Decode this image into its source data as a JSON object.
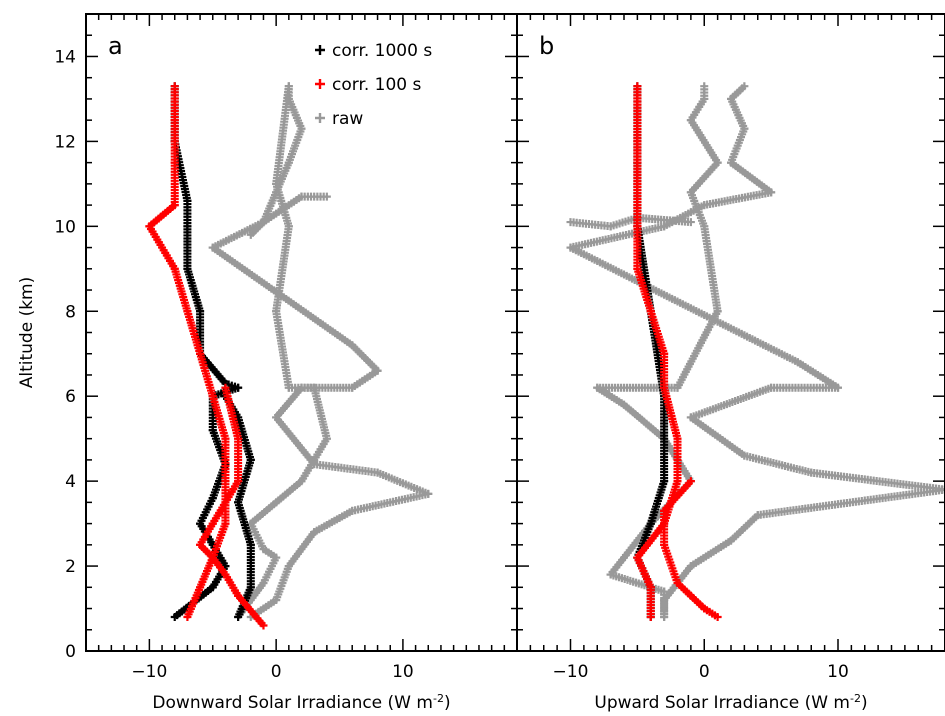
{
  "chart_data": [
    {
      "panel_label": "a",
      "type": "scatter",
      "xlabel": "Downward Solar Irradiance (W m",
      "xlabel_unit_exponent": "-2",
      "xlabel_close": ")",
      "ylabel": "Altitude (km)",
      "xlim": [
        -15,
        19
      ],
      "ylim": [
        0,
        15
      ],
      "x_ticks": [
        -10,
        0,
        10
      ],
      "y_ticks": [
        0,
        2,
        4,
        6,
        8,
        10,
        12,
        14
      ],
      "grid": false,
      "legend_position": "top-right",
      "legend": [
        {
          "label": "corr. 1000 s",
          "color": "#000000"
        },
        {
          "label": "corr. 100 s",
          "color": "#ff0000"
        },
        {
          "label": "raw",
          "color": "#999999"
        }
      ],
      "series": [
        {
          "name": "raw",
          "color": "#999999",
          "paths": [
            {
              "x": [
                -3,
                -1,
                0,
                -1,
                -2,
                0,
                2,
                4,
                3,
                1,
                0,
                1,
                0,
                1
              ],
              "y": [
                0.8,
                1.6,
                2.2,
                2.4,
                3.0,
                3.5,
                4.0,
                5.0,
                6.2,
                6.2,
                8.0,
                10.0,
                11.0,
                13.3
              ]
            },
            {
              "x": [
                -2,
                0,
                1,
                3,
                6,
                12,
                8,
                3,
                0,
                2,
                6,
                8,
                6,
                -5,
                -1,
                0,
                1,
                2,
                1,
                1
              ],
              "y": [
                0.8,
                1.2,
                2.0,
                2.8,
                3.3,
                3.7,
                4.2,
                4.4,
                5.5,
                6.2,
                6.2,
                6.6,
                7.2,
                9.5,
                10.1,
                10.8,
                11.5,
                12.3,
                13.0,
                13.3
              ]
            },
            {
              "x": [
                -2,
                -1,
                2,
                4
              ],
              "y": [
                9.8,
                10.1,
                10.7,
                10.7
              ]
            }
          ]
        },
        {
          "name": "corr. 1000 s",
          "color": "#000000",
          "paths": [
            {
              "x": [
                -8,
                -5,
                -4,
                -5,
                -6,
                -5,
                -4,
                -5,
                -5,
                -3,
                -4,
                -6,
                -6,
                -7,
                -7,
                -7,
                -8,
                -8
              ],
              "y": [
                0.8,
                1.5,
                2.0,
                2.5,
                3.0,
                3.6,
                4.4,
                5.2,
                6.0,
                6.2,
                6.3,
                7.0,
                8.0,
                9.0,
                10.0,
                10.6,
                12.0,
                13.3
              ]
            },
            {
              "x": [
                -3,
                -2,
                -2,
                -3,
                -2,
                -3,
                -4,
                -4
              ],
              "y": [
                0.8,
                1.5,
                2.5,
                3.5,
                4.5,
                5.5,
                6.0,
                6.2
              ]
            }
          ]
        },
        {
          "name": "corr. 100 s",
          "color": "#ff0000",
          "paths": [
            {
              "x": [
                -7,
                -6,
                -5,
                -4,
                -4,
                -4,
                -5,
                -6,
                -7,
                -8,
                -10,
                -8,
                -8,
                -8,
                -8
              ],
              "y": [
                0.8,
                1.5,
                2.2,
                3.0,
                4.0,
                5.0,
                6.0,
                7.0,
                8.0,
                9.0,
                10.0,
                10.5,
                11.5,
                12.5,
                13.3
              ]
            },
            {
              "x": [
                -1,
                -3,
                -4,
                -5,
                -6,
                -5,
                -3,
                -3,
                -4
              ],
              "y": [
                0.6,
                1.3,
                1.8,
                2.2,
                2.5,
                3.0,
                4.0,
                5.0,
                6.2
              ]
            }
          ]
        }
      ]
    },
    {
      "panel_label": "b",
      "type": "scatter",
      "xlabel": "Upward Solar Irradiance (W m",
      "xlabel_unit_exponent": "-2",
      "xlabel_close": ")",
      "xlim": [
        -14,
        18
      ],
      "ylim": [
        0,
        15
      ],
      "x_ticks": [
        -10,
        0,
        10
      ],
      "grid": false,
      "series": [
        {
          "name": "raw",
          "color": "#999999",
          "paths": [
            {
              "x": [
                -3,
                -3,
                -7,
                -6,
                -4,
                -1,
                -3,
                -6,
                -8,
                -2,
                1,
                0,
                -1,
                1,
                -1,
                0,
                0
              ],
              "y": [
                0.8,
                1.4,
                1.8,
                2.2,
                3.0,
                4.0,
                5.0,
                5.8,
                6.2,
                6.2,
                8.0,
                10.0,
                10.8,
                11.5,
                12.5,
                13.0,
                13.3
              ]
            },
            {
              "x": [
                -3,
                -3,
                -1,
                2,
                4,
                18,
                8,
                3,
                -1,
                5,
                10,
                7,
                -10,
                -3,
                0,
                5,
                2,
                3,
                2,
                3
              ],
              "y": [
                0.8,
                1.2,
                2.0,
                2.6,
                3.2,
                3.8,
                4.2,
                4.6,
                5.5,
                6.2,
                6.2,
                6.8,
                9.5,
                10.0,
                10.5,
                10.8,
                11.5,
                12.3,
                13.0,
                13.3
              ]
            },
            {
              "x": [
                -10,
                -7,
                -5,
                -1
              ],
              "y": [
                10.1,
                10.0,
                10.2,
                10.1
              ]
            }
          ]
        },
        {
          "name": "corr. 1000 s",
          "color": "#000000",
          "paths": [
            {
              "x": [
                -4,
                -4,
                -5,
                -4,
                -3,
                -3,
                -4,
                -5,
                -5,
                -5
              ],
              "y": [
                0.8,
                1.5,
                2.2,
                3.0,
                4.0,
                6.0,
                8.0,
                10.0,
                11.5,
                13.3
              ]
            }
          ]
        },
        {
          "name": "corr. 100 s",
          "color": "#ff0000",
          "paths": [
            {
              "x": [
                -4,
                -4,
                -5,
                -3,
                -2,
                -2,
                -3,
                -3,
                -4,
                -5,
                -5,
                -5,
                -5,
                -5
              ],
              "y": [
                0.8,
                1.5,
                2.2,
                3.0,
                4.0,
                5.0,
                6.2,
                7.0,
                8.0,
                9.0,
                10.0,
                11.0,
                12.0,
                13.3
              ]
            },
            {
              "x": [
                1,
                0,
                -1,
                -2,
                -3,
                -3,
                -1
              ],
              "y": [
                0.8,
                1.0,
                1.3,
                1.6,
                2.5,
                3.3,
                4.0
              ]
            }
          ]
        }
      ]
    }
  ]
}
